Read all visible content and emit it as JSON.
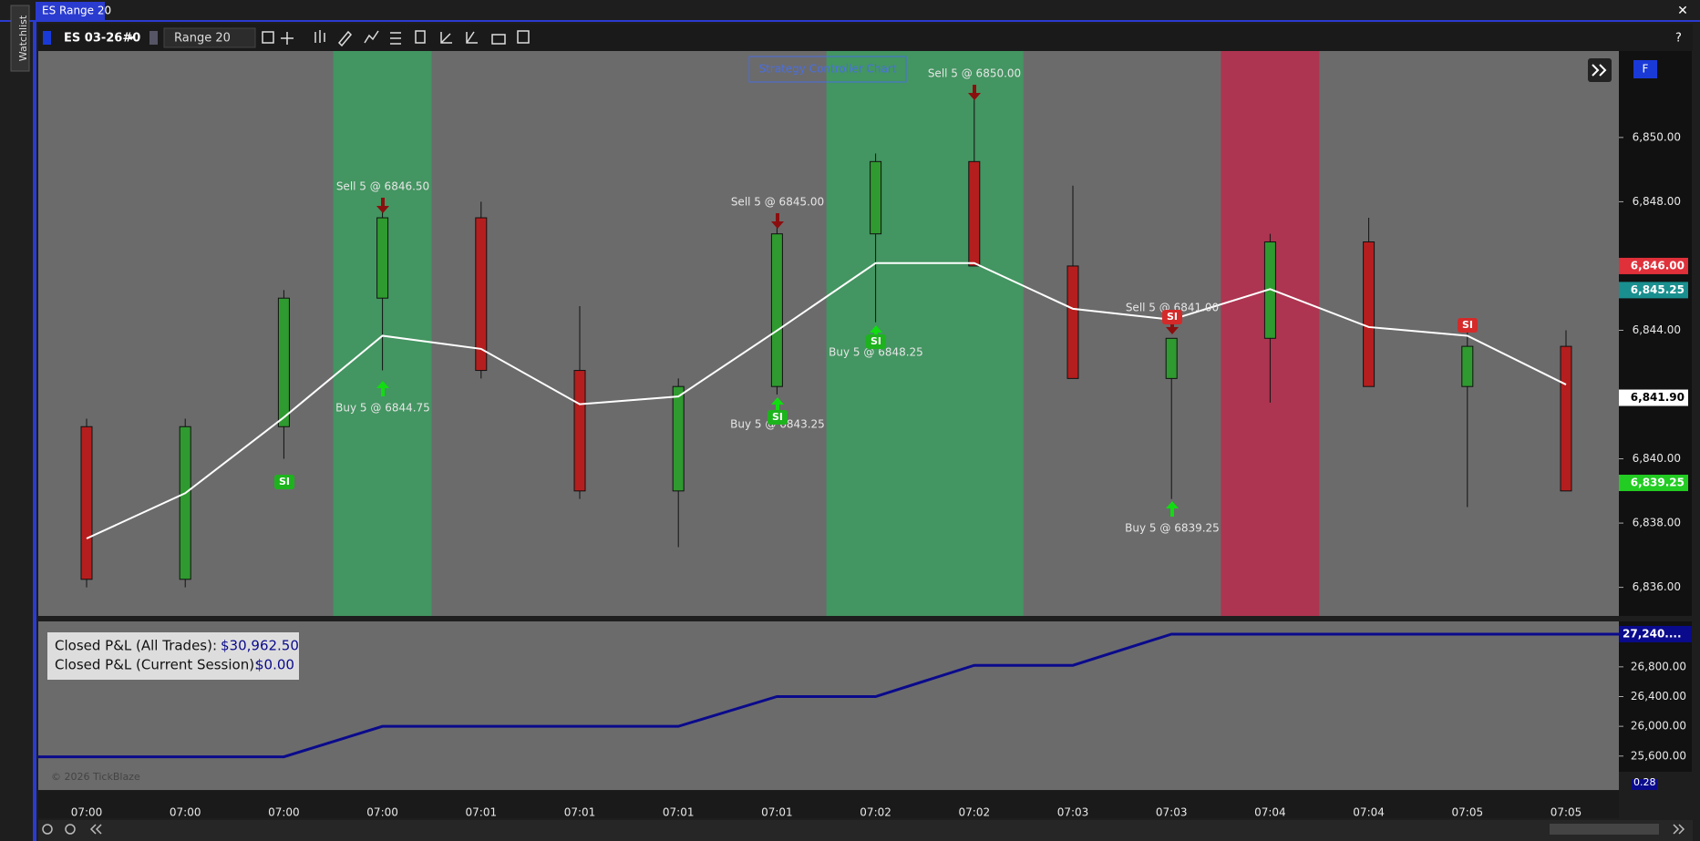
{
  "window": {
    "title": "ES Range 20",
    "close": "✕",
    "watchlist": "Watchlist"
  },
  "toolbar": {
    "symbol": "ES 03-26#0",
    "period": "Range 20",
    "help": "?"
  },
  "button": "F",
  "chart_data": [
    {
      "type": "candlestick",
      "title": "Strategy Controller Chart",
      "categories": [
        "07:00",
        "07:00",
        "07:00",
        "07:00",
        "07:01",
        "07:01",
        "07:01",
        "07:01",
        "07:02",
        "07:02",
        "07:03",
        "07:03",
        "07:04",
        "07:04",
        "07:05",
        "07:05"
      ],
      "candles": [
        {
          "open": 6841.0,
          "high": 6841.25,
          "low": 6836.0,
          "close": 6836.25
        },
        {
          "open": 6836.25,
          "high": 6841.25,
          "low": 6836.0,
          "close": 6841.0
        },
        {
          "open": 6841.0,
          "high": 6845.25,
          "low": 6840.0,
          "close": 6845.0
        },
        {
          "open": 6845.0,
          "high": 6848.0,
          "low": 6842.75,
          "close": 6847.5
        },
        {
          "open": 6847.5,
          "high": 6848.0,
          "low": 6842.5,
          "close": 6842.75
        },
        {
          "open": 6842.75,
          "high": 6844.75,
          "low": 6838.75,
          "close": 6839.0
        },
        {
          "open": 6839.0,
          "high": 6842.5,
          "low": 6837.25,
          "close": 6842.25
        },
        {
          "open": 6842.25,
          "high": 6847.5,
          "low": 6842.0,
          "close": 6847.0
        },
        {
          "open": 6847.0,
          "high": 6849.5,
          "low": 6844.25,
          "close": 6849.25
        },
        {
          "open": 6849.25,
          "high": 6851.5,
          "low": 6846.0,
          "close": 6846.0
        },
        {
          "open": 6846.0,
          "high": 6848.5,
          "low": 6842.5,
          "close": 6842.5
        },
        {
          "open": 6842.5,
          "high": 6843.75,
          "low": 6838.75,
          "close": 6843.75
        },
        {
          "open": 6843.75,
          "high": 6847.0,
          "low": 6841.75,
          "close": 6846.75
        },
        {
          "open": 6846.75,
          "high": 6847.5,
          "low": 6842.25,
          "close": 6842.25
        },
        {
          "open": 6842.25,
          "high": 6844.0,
          "low": 6838.5,
          "close": 6843.5
        },
        {
          "open": 6843.5,
          "high": 6844.0,
          "low": 6839.0,
          "close": 6839.0
        }
      ],
      "up_color": "#2f9a2f",
      "down_color": "#b51e1e",
      "line": {
        "color": "#ffffff",
        "values": [
          6837.52,
          6838.93,
          6841.29,
          6843.83,
          6843.42,
          6841.7,
          6841.94,
          6843.99,
          6846.09,
          6846.09,
          6844.67,
          6844.33,
          6845.28,
          6844.1,
          6843.83,
          6842.31
        ]
      },
      "ylim": [
        6835.11,
        6852.69
      ],
      "yticks": [
        {
          "value": 6836,
          "label": "6,836.00"
        },
        {
          "value": 6838,
          "label": "6,838.00"
        },
        {
          "value": 6840,
          "label": "6,840.00"
        },
        {
          "value": 6842,
          "label": "6,842.00"
        },
        {
          "value": 6844,
          "label": "6,844.00"
        },
        {
          "value": 6846,
          "label": "6,846.00"
        },
        {
          "value": 6848,
          "label": "6,848.00"
        },
        {
          "value": 6850,
          "label": "6,850.00"
        }
      ],
      "price_labels": [
        {
          "value": 6846,
          "label": "6,846.00",
          "color": "#e0303a"
        },
        {
          "value": 6845.25,
          "label": "6,845.25",
          "color": "#1a8f8f"
        },
        {
          "value": 6841.9,
          "label": "6,841.90",
          "color": "#ffffff"
        },
        {
          "value": 6839.25,
          "label": "6,839.25",
          "color": "#22cc22"
        }
      ],
      "trades": [
        "Sell 5 @ 6846.50",
        "Buy 5 @ 6844.75",
        "Sell 5 @ 6845.00",
        "Buy 5 @ 6843.25",
        "Buy 5 @ 6848.25",
        "Sell 5 @ 6850.00",
        "Sell 5 @ 6841.00",
        "Buy 5 @ 6839.25"
      ],
      "signals": [
        "SI",
        "SI",
        "SI",
        "SI",
        "SI"
      ]
    },
    {
      "type": "line",
      "annotations": [
        "Closed P&L (All Trades):",
        "$30,962.50",
        "Closed P&L (Current Session):",
        "$0.00"
      ],
      "values": [
        25590,
        25590,
        25590,
        26000,
        26000,
        26000,
        26000,
        26400,
        26400,
        26820,
        26820,
        27240,
        27240,
        27240,
        27240,
        27240
      ],
      "color": "#0a0a8c",
      "ylim": [
        25389,
        27411
      ],
      "yticks": [
        {
          "value": 25600,
          "label": "25,600.00"
        },
        {
          "value": 26000,
          "label": "26,000.00"
        },
        {
          "value": 26400,
          "label": "26,400.00"
        },
        {
          "value": 26800,
          "label": "26,800.00"
        }
      ],
      "last_label": {
        "value": 27240,
        "label": "27,240...."
      }
    }
  ],
  "footer": {
    "copyright": "© 2026 TickBlaze",
    "scale": "0.28"
  }
}
